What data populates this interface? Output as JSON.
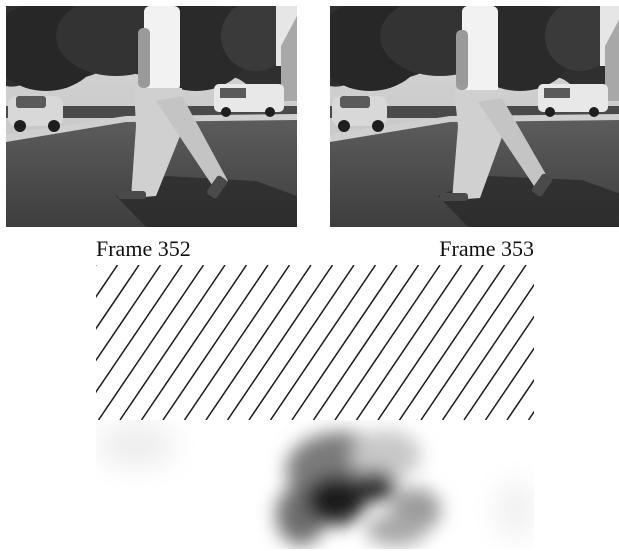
{
  "figure": {
    "frames": [
      {
        "caption": "Frame 352"
      },
      {
        "caption": "Frame 353"
      }
    ]
  }
}
